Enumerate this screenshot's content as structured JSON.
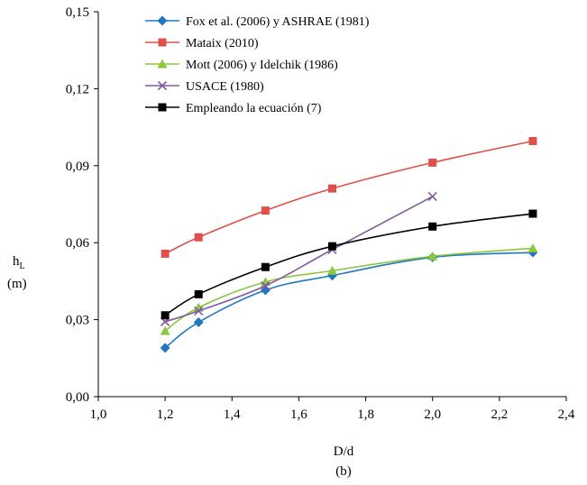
{
  "chart_data": {
    "type": "line",
    "xlabel": "D/d",
    "ylabel": "(m)",
    "ylabel_main": "h",
    "ylabel_sub": "L",
    "caption": "(b)",
    "xlim": [
      1.0,
      2.4
    ],
    "ylim": [
      0.0,
      0.15
    ],
    "xticks": [
      "1,0",
      "1,2",
      "1,4",
      "1,6",
      "1,8",
      "2,0",
      "2,2",
      "2,4"
    ],
    "yticks": [
      "0,00",
      "0,03",
      "0,06",
      "0,09",
      "0,12",
      "0,15"
    ],
    "grid": false,
    "legend_position": "top-left",
    "series": [
      {
        "name": "Fox et al. (2006) y ASHRAE (1981)",
        "color": "#1f77c0",
        "marker": "diamond",
        "x": [
          1.2,
          1.3,
          1.5,
          1.7,
          2.0,
          2.3
        ],
        "y": [
          0.019,
          0.029,
          0.0415,
          0.0472,
          0.0543,
          0.0562
        ]
      },
      {
        "name": "Mataix (2010)",
        "color": "#e0504a",
        "marker": "square",
        "x": [
          1.2,
          1.3,
          1.5,
          1.7,
          2.0,
          2.3
        ],
        "y": [
          0.0557,
          0.0621,
          0.0725,
          0.0811,
          0.0912,
          0.0996
        ]
      },
      {
        "name": "Mott (2006) y Idelchik (1986)",
        "color": "#8dc63f",
        "marker": "triangle",
        "x": [
          1.2,
          1.3,
          1.5,
          1.7,
          2.0,
          2.3
        ],
        "y": [
          0.0256,
          0.0347,
          0.0447,
          0.0491,
          0.0547,
          0.0578
        ]
      },
      {
        "name": "USACE (1980)",
        "color": "#7f5aa2",
        "marker": "x",
        "x": [
          1.2,
          1.3,
          1.5,
          1.7,
          2.0
        ],
        "y": [
          0.0292,
          0.0334,
          0.0432,
          0.0573,
          0.078
        ]
      },
      {
        "name": "Empleando la ecuación (7)",
        "color": "#000000",
        "marker": "square",
        "x": [
          1.2,
          1.3,
          1.5,
          1.7,
          2.0,
          2.3
        ],
        "y": [
          0.0317,
          0.0399,
          0.0505,
          0.0586,
          0.0663,
          0.0713
        ]
      }
    ]
  }
}
